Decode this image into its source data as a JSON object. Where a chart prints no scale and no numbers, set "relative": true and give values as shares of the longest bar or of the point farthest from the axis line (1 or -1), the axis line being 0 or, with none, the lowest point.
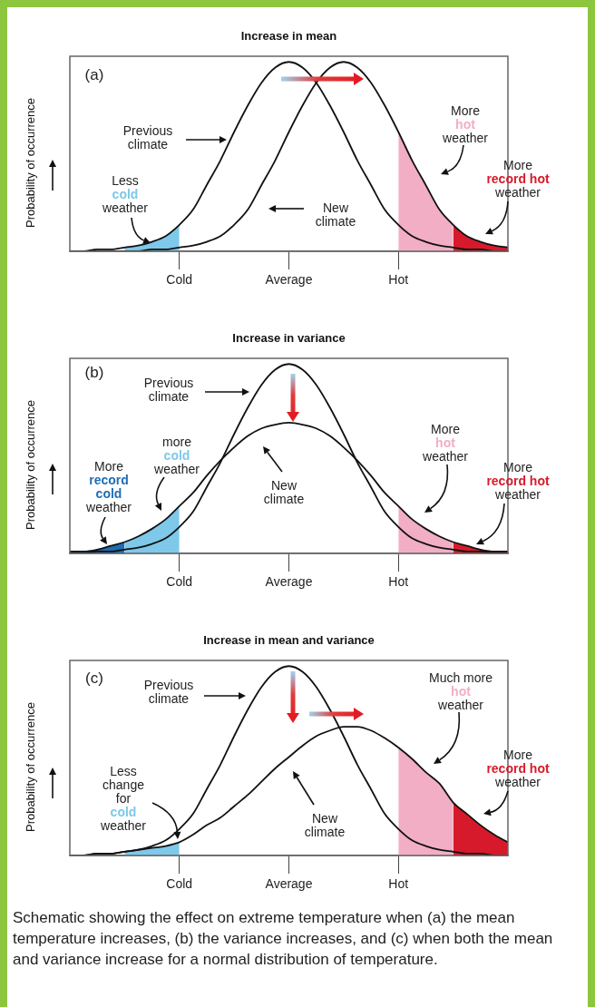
{
  "chart_data": [
    {
      "type": "line",
      "title": "Increase in mean",
      "ylabel": "Probability of occurrence",
      "relative": true,
      "marker": "none",
      "legend": false,
      "grid": false,
      "categories": [
        null,
        null,
        null,
        null,
        null,
        null,
        null,
        null,
        "Cold",
        null,
        null,
        null,
        null,
        null,
        null,
        null,
        "Average",
        null,
        null,
        null,
        null,
        null,
        null,
        null,
        "Hot",
        null,
        null,
        null,
        null,
        null,
        null,
        null,
        null
      ],
      "series": [
        {
          "color": "#111111",
          "values": [
            0,
            0,
            0.01,
            0.01,
            0.02,
            0.03,
            0.05,
            0.08,
            0.14,
            0.22,
            0.35,
            0.48,
            0.63,
            0.77,
            0.89,
            0.97,
            1,
            0.97,
            0.89,
            0.77,
            0.63,
            0.48,
            0.35,
            0.22,
            0.14,
            0.08,
            0.05,
            0.03,
            0.02,
            0.01,
            0.01,
            0,
            0
          ]
        },
        {
          "color": "#111111",
          "values": [
            0,
            0,
            0,
            0,
            0,
            0,
            0.01,
            0.01,
            0.02,
            0.03,
            0.05,
            0.08,
            0.14,
            0.22,
            0.35,
            0.48,
            0.63,
            0.77,
            0.89,
            0.97,
            1,
            0.97,
            0.89,
            0.77,
            0.63,
            0.48,
            0.35,
            0.22,
            0.14,
            0.08,
            0.05,
            0.03,
            0.02
          ]
        },
        {
          "type": "area",
          "color": "#7ec8ea",
          "values": [
            null,
            null,
            null,
            null,
            0.02,
            0.03,
            0.05,
            0.08,
            0.14,
            null,
            null,
            null,
            null,
            null,
            null,
            null,
            null,
            null,
            null,
            null,
            null,
            null,
            null,
            null,
            null,
            null,
            null,
            null,
            null,
            null,
            null,
            null,
            null
          ]
        },
        {
          "type": "area",
          "color": "#f2aec4",
          "values": [
            null,
            null,
            null,
            null,
            null,
            null,
            null,
            null,
            null,
            null,
            null,
            null,
            null,
            null,
            null,
            null,
            null,
            null,
            null,
            null,
            null,
            null,
            null,
            null,
            0.63,
            0.48,
            0.35,
            0.22,
            0.14,
            null,
            null,
            null,
            null
          ]
        },
        {
          "type": "area",
          "color": "#d71a2b",
          "values": [
            null,
            null,
            null,
            null,
            null,
            null,
            null,
            null,
            null,
            null,
            null,
            null,
            null,
            null,
            null,
            null,
            null,
            null,
            null,
            null,
            null,
            null,
            null,
            null,
            null,
            null,
            null,
            null,
            0.14,
            0.08,
            0.05,
            0.03,
            0.02
          ]
        }
      ],
      "annotations": [
        "(a)",
        "Less cold weather",
        "More hot weather",
        "More record hot weather",
        "Previous climate",
        "New climate"
      ]
    },
    {
      "type": "line",
      "title": "Increase in variance",
      "ylabel": "Probability of occurrence",
      "relative": true,
      "marker": "none",
      "legend": false,
      "grid": false,
      "categories": [
        null,
        null,
        null,
        null,
        null,
        null,
        null,
        null,
        "Cold",
        null,
        null,
        null,
        null,
        null,
        null,
        null,
        "Average",
        null,
        null,
        null,
        null,
        null,
        null,
        null,
        "Hot",
        null,
        null,
        null,
        null,
        null,
        null,
        null,
        null
      ],
      "series": [
        {
          "color": "#111111",
          "values": [
            0,
            0,
            0.01,
            0.01,
            0.02,
            0.03,
            0.05,
            0.08,
            0.14,
            0.22,
            0.35,
            0.48,
            0.63,
            0.77,
            0.89,
            0.97,
            1,
            0.97,
            0.89,
            0.77,
            0.63,
            0.48,
            0.35,
            0.22,
            0.14,
            0.08,
            0.05,
            0.03,
            0.02,
            0.01,
            0.01,
            0,
            0
          ]
        },
        {
          "color": "#111111",
          "values": [
            0.01,
            0.01,
            0.02,
            0.04,
            0.06,
            0.09,
            0.13,
            0.18,
            0.25,
            0.32,
            0.41,
            0.49,
            0.56,
            0.62,
            0.66,
            0.68,
            0.69,
            0.68,
            0.66,
            0.62,
            0.56,
            0.49,
            0.41,
            0.32,
            0.25,
            0.18,
            0.13,
            0.09,
            0.06,
            0.04,
            0.02,
            0.01,
            0.01
          ]
        },
        {
          "type": "area",
          "color": "#1f6db4",
          "values": [
            0.01,
            0.01,
            0.02,
            0.04,
            0.06,
            null,
            null,
            null,
            null,
            null,
            null,
            null,
            null,
            null,
            null,
            null,
            null,
            null,
            null,
            null,
            null,
            null,
            null,
            null,
            null,
            null,
            null,
            null,
            null,
            null,
            null,
            null,
            null
          ]
        },
        {
          "type": "area",
          "color": "#7ec8ea",
          "values": [
            null,
            null,
            null,
            null,
            0.06,
            0.09,
            0.13,
            0.18,
            0.25,
            null,
            null,
            null,
            null,
            null,
            null,
            null,
            null,
            null,
            null,
            null,
            null,
            null,
            null,
            null,
            null,
            null,
            null,
            null,
            null,
            null,
            null,
            null,
            null
          ]
        },
        {
          "type": "area",
          "color": "#f2aec4",
          "values": [
            null,
            null,
            null,
            null,
            null,
            null,
            null,
            null,
            null,
            null,
            null,
            null,
            null,
            null,
            null,
            null,
            null,
            null,
            null,
            null,
            null,
            null,
            null,
            null,
            0.25,
            0.18,
            0.13,
            0.09,
            0.06,
            null,
            null,
            null,
            null
          ]
        },
        {
          "type": "area",
          "color": "#d71a2b",
          "values": [
            null,
            null,
            null,
            null,
            null,
            null,
            null,
            null,
            null,
            null,
            null,
            null,
            null,
            null,
            null,
            null,
            null,
            null,
            null,
            null,
            null,
            null,
            null,
            null,
            null,
            null,
            null,
            null,
            0.06,
            0.04,
            0.02,
            0.01,
            0.01
          ]
        }
      ],
      "annotations": [
        "(b)",
        "More record cold weather",
        "more cold weather",
        "More hot weather",
        "More record hot weather",
        "Previous climate",
        "New climate"
      ]
    },
    {
      "type": "line",
      "title": "Increase in mean and variance",
      "ylabel": "Probability of occurrence",
      "relative": true,
      "marker": "none",
      "legend": false,
      "grid": false,
      "categories": [
        null,
        null,
        null,
        null,
        null,
        null,
        null,
        null,
        "Cold",
        null,
        null,
        null,
        null,
        null,
        null,
        null,
        "Average",
        null,
        null,
        null,
        null,
        null,
        null,
        null,
        "Hot",
        null,
        null,
        null,
        null,
        null,
        null,
        null,
        null
      ],
      "series": [
        {
          "color": "#111111",
          "values": [
            0,
            0,
            0.01,
            0.01,
            0.02,
            0.03,
            0.05,
            0.08,
            0.14,
            0.22,
            0.35,
            0.48,
            0.63,
            0.77,
            0.89,
            0.97,
            1,
            0.97,
            0.89,
            0.77,
            0.63,
            0.48,
            0.35,
            0.22,
            0.14,
            0.08,
            0.05,
            0.03,
            0.02,
            0.01,
            0.01,
            0,
            0
          ]
        },
        {
          "color": "#111111",
          "values": [
            0,
            0,
            0.01,
            0.01,
            0.02,
            0.03,
            0.04,
            0.05,
            0.07,
            0.11,
            0.16,
            0.2,
            0.26,
            0.32,
            0.39,
            0.46,
            0.52,
            0.58,
            0.63,
            0.66,
            0.68,
            0.68,
            0.66,
            0.62,
            0.57,
            0.51,
            0.44,
            0.38,
            0.28,
            0.22,
            0.16,
            0.11,
            0.07
          ]
        },
        {
          "type": "area",
          "color": "#7ec8ea",
          "values": [
            null,
            null,
            null,
            null,
            0.02,
            0.03,
            0.04,
            0.05,
            0.07,
            null,
            null,
            null,
            null,
            null,
            null,
            null,
            null,
            null,
            null,
            null,
            null,
            null,
            null,
            null,
            null,
            null,
            null,
            null,
            null,
            null,
            null,
            null,
            null
          ]
        },
        {
          "type": "area",
          "color": "#f2aec4",
          "values": [
            null,
            null,
            null,
            null,
            null,
            null,
            null,
            null,
            null,
            null,
            null,
            null,
            null,
            null,
            null,
            null,
            null,
            null,
            null,
            null,
            null,
            null,
            null,
            null,
            0.57,
            0.51,
            0.44,
            0.38,
            0.28,
            null,
            null,
            null,
            null
          ]
        },
        {
          "type": "area",
          "color": "#d71a2b",
          "values": [
            null,
            null,
            null,
            null,
            null,
            null,
            null,
            null,
            null,
            null,
            null,
            null,
            null,
            null,
            null,
            null,
            null,
            null,
            null,
            null,
            null,
            null,
            null,
            null,
            null,
            null,
            null,
            null,
            0.28,
            0.22,
            0.16,
            0.11,
            0.07
          ]
        }
      ],
      "annotations": [
        "(c)",
        "Less change for cold weather",
        "Much more hot weather",
        "More record hot weather",
        "Previous climate",
        "New climate",
        "Schematic showing the effect on extreme temperature when (a) the mean temperature increases, (b) the variance increases, and (c) when both the mean and variance increase for a normal distribution of temperature."
      ]
    }
  ]
}
